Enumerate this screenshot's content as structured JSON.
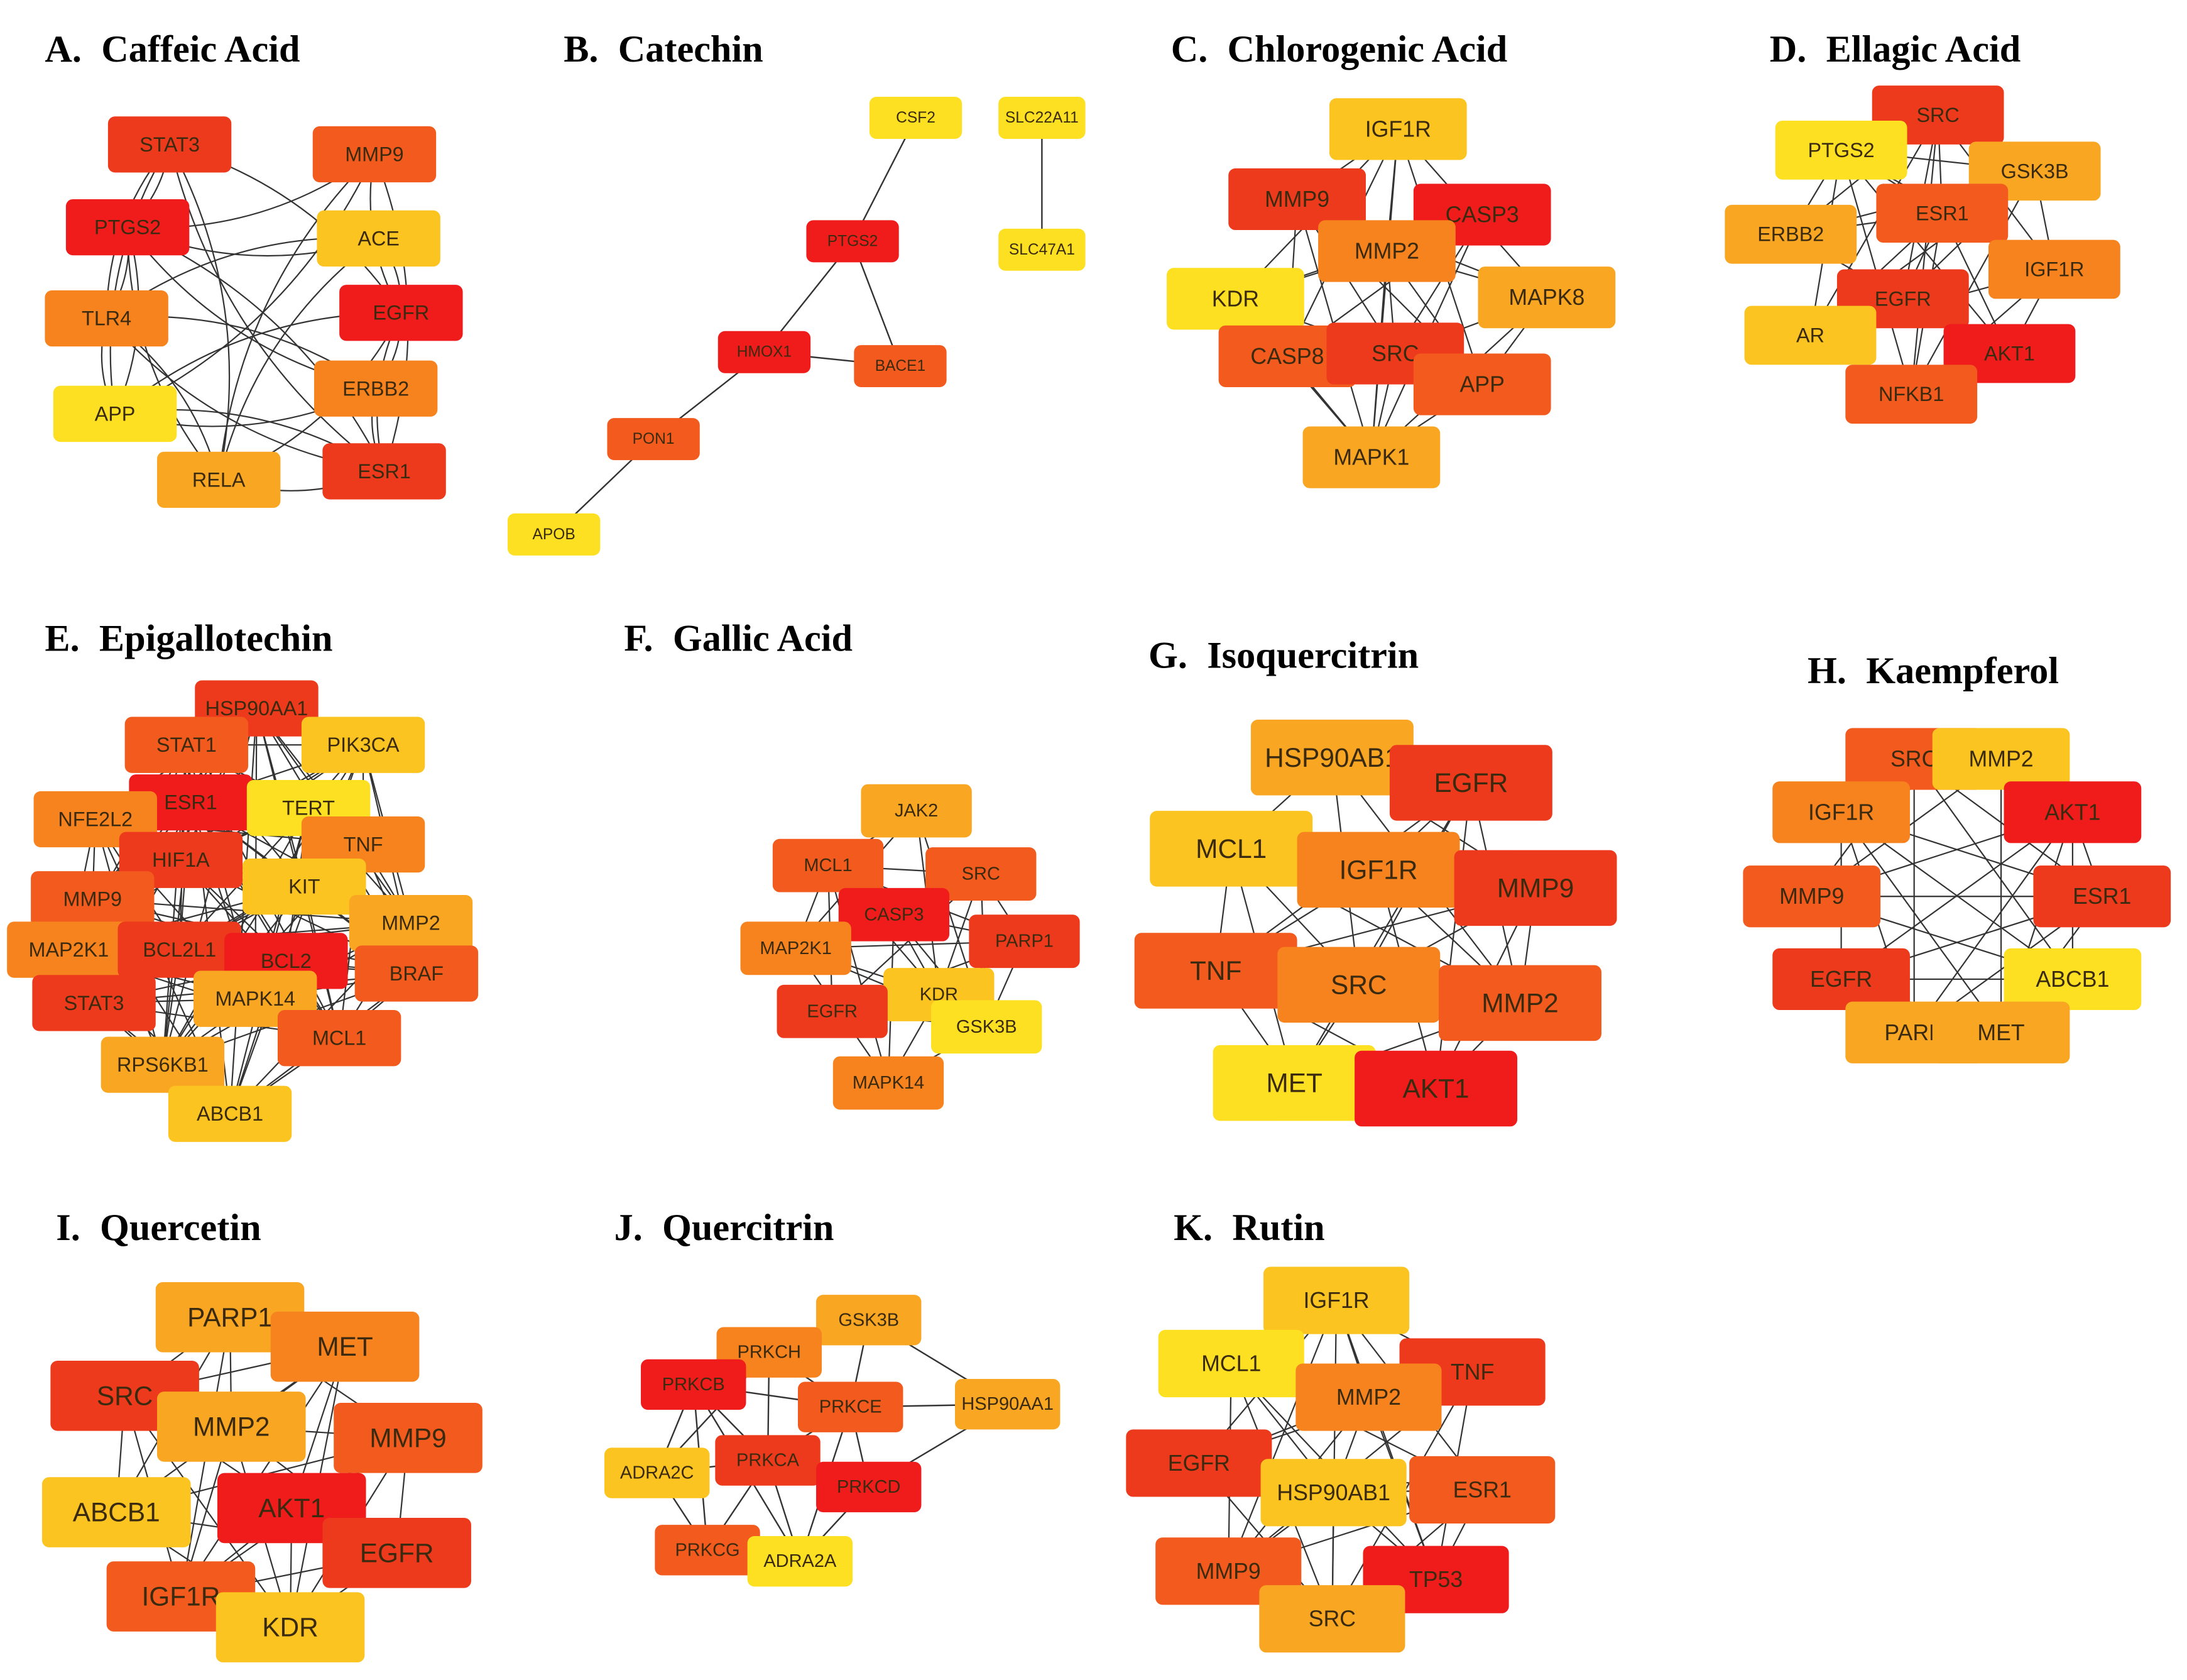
{
  "colors": {
    "red": "#f01c1c",
    "red_orange": "#ee3a1c",
    "orange_red": "#f25a1e",
    "orange": "#f7831f",
    "light_orange": "#f9a623",
    "gold": "#fbc420",
    "yellow": "#fde022",
    "edge": "#333333"
  },
  "panels": [
    {
      "letter": "A.",
      "name": "Caffeic Acid",
      "nodes": [
        {
          "label": "STAT3",
          "color": "red_orange"
        },
        {
          "label": "MMP9",
          "color": "orange_red"
        },
        {
          "label": "PTGS2",
          "color": "red"
        },
        {
          "label": "ACE",
          "color": "gold"
        },
        {
          "label": "TLR4",
          "color": "orange"
        },
        {
          "label": "EGFR",
          "color": "red"
        },
        {
          "label": "ERBB2",
          "color": "orange"
        },
        {
          "label": "APP",
          "color": "yellow"
        },
        {
          "label": "RELA",
          "color": "light_orange"
        },
        {
          "label": "ESR1",
          "color": "red_orange"
        }
      ]
    },
    {
      "letter": "B.",
      "name": "Catechin",
      "nodes": [
        {
          "label": "CSF2",
          "color": "yellow"
        },
        {
          "label": "SLC22A11",
          "color": "yellow"
        },
        {
          "label": "PTGS2",
          "color": "red"
        },
        {
          "label": "SLC47A1",
          "color": "yellow"
        },
        {
          "label": "HMOX1",
          "color": "red"
        },
        {
          "label": "BACE1",
          "color": "orange_red"
        },
        {
          "label": "PON1",
          "color": "orange_red"
        },
        {
          "label": "APOB",
          "color": "yellow"
        }
      ]
    },
    {
      "letter": "C.",
      "name": "Chlorogenic Acid",
      "nodes": [
        {
          "label": "IGF1R",
          "color": "gold"
        },
        {
          "label": "MMP9",
          "color": "red_orange"
        },
        {
          "label": "CASP3",
          "color": "red"
        },
        {
          "label": "MMP2",
          "color": "orange"
        },
        {
          "label": "KDR",
          "color": "yellow"
        },
        {
          "label": "MAPK8",
          "color": "light_orange"
        },
        {
          "label": "CASP8",
          "color": "orange_red"
        },
        {
          "label": "SRC",
          "color": "red_orange"
        },
        {
          "label": "APP",
          "color": "orange_red"
        },
        {
          "label": "MAPK1",
          "color": "light_orange"
        }
      ]
    },
    {
      "letter": "D.",
      "name": "Ellagic Acid",
      "nodes": [
        {
          "label": "SRC",
          "color": "red_orange"
        },
        {
          "label": "PTGS2",
          "color": "yellow"
        },
        {
          "label": "GSK3B",
          "color": "light_orange"
        },
        {
          "label": "ESR1",
          "color": "orange_red"
        },
        {
          "label": "ERBB2",
          "color": "light_orange"
        },
        {
          "label": "IGF1R",
          "color": "orange"
        },
        {
          "label": "EGFR",
          "color": "red_orange"
        },
        {
          "label": "AR",
          "color": "gold"
        },
        {
          "label": "AKT1",
          "color": "red"
        },
        {
          "label": "NFKB1",
          "color": "orange_red"
        }
      ]
    },
    {
      "letter": "E.",
      "name": "Epigallotechin",
      "nodes": [
        {
          "label": "HSP90AA1",
          "color": "red_orange"
        },
        {
          "label": "STAT1",
          "color": "orange_red"
        },
        {
          "label": "PIK3CA",
          "color": "gold"
        },
        {
          "label": "ESR1",
          "color": "red"
        },
        {
          "label": "TERT",
          "color": "yellow"
        },
        {
          "label": "NFE2L2",
          "color": "orange"
        },
        {
          "label": "TNF",
          "color": "orange"
        },
        {
          "label": "HIF1A",
          "color": "red_orange"
        },
        {
          "label": "KIT",
          "color": "gold"
        },
        {
          "label": "MMP9",
          "color": "orange_red"
        },
        {
          "label": "MMP2",
          "color": "light_orange"
        },
        {
          "label": "MAP2K1",
          "color": "orange"
        },
        {
          "label": "BCL2L1",
          "color": "red_orange"
        },
        {
          "label": "BCL2",
          "color": "red"
        },
        {
          "label": "BRAF",
          "color": "orange_red"
        },
        {
          "label": "STAT3",
          "color": "red_orange"
        },
        {
          "label": "MAPK14",
          "color": "light_orange"
        },
        {
          "label": "MCL1",
          "color": "orange_red"
        },
        {
          "label": "RPS6KB1",
          "color": "light_orange"
        },
        {
          "label": "ABCB1",
          "color": "gold"
        }
      ]
    },
    {
      "letter": "F.",
      "name": "Gallic Acid",
      "nodes": [
        {
          "label": "JAK2",
          "color": "light_orange"
        },
        {
          "label": "MCL1",
          "color": "orange_red"
        },
        {
          "label": "SRC",
          "color": "orange_red"
        },
        {
          "label": "CASP3",
          "color": "red"
        },
        {
          "label": "PARP1",
          "color": "red_orange"
        },
        {
          "label": "MAP2K1",
          "color": "orange"
        },
        {
          "label": "KDR",
          "color": "gold"
        },
        {
          "label": "EGFR",
          "color": "red_orange"
        },
        {
          "label": "GSK3B",
          "color": "yellow"
        },
        {
          "label": "MAPK14",
          "color": "orange"
        }
      ]
    },
    {
      "letter": "G.",
      "name": "Isoquercitrin",
      "nodes": [
        {
          "label": "HSP90AB1",
          "color": "light_orange"
        },
        {
          "label": "EGFR",
          "color": "red_orange"
        },
        {
          "label": "MCL1",
          "color": "gold"
        },
        {
          "label": "IGF1R",
          "color": "orange"
        },
        {
          "label": "MMP9",
          "color": "red_orange"
        },
        {
          "label": "TNF",
          "color": "orange_red"
        },
        {
          "label": "SRC",
          "color": "orange"
        },
        {
          "label": "MMP2",
          "color": "orange_red"
        },
        {
          "label": "MET",
          "color": "yellow"
        },
        {
          "label": "AKT1",
          "color": "red"
        }
      ]
    },
    {
      "letter": "H.",
      "name": "Kaempferol",
      "nodes": [
        {
          "label": "SRC",
          "color": "orange_red"
        },
        {
          "label": "MMP2",
          "color": "gold"
        },
        {
          "label": "IGF1R",
          "color": "orange"
        },
        {
          "label": "AKT1",
          "color": "red"
        },
        {
          "label": "MMP9",
          "color": "orange_red"
        },
        {
          "label": "ESR1",
          "color": "red_orange"
        },
        {
          "label": "EGFR",
          "color": "red_orange"
        },
        {
          "label": "ABCB1",
          "color": "yellow"
        },
        {
          "label": "PARP",
          "color": "light_orange"
        },
        {
          "label": "MET",
          "color": "light_orange"
        }
      ]
    },
    {
      "letter": "I.",
      "name": "Quercetin",
      "nodes": [
        {
          "label": "PARP1",
          "color": "light_orange"
        },
        {
          "label": "MET",
          "color": "orange"
        },
        {
          "label": "SRC",
          "color": "red_orange"
        },
        {
          "label": "MMP2",
          "color": "light_orange"
        },
        {
          "label": "MMP9",
          "color": "orange_red"
        },
        {
          "label": "ABCB1",
          "color": "gold"
        },
        {
          "label": "AKT1",
          "color": "red"
        },
        {
          "label": "EGFR",
          "color": "red_orange"
        },
        {
          "label": "IGF1R",
          "color": "orange_red"
        },
        {
          "label": "KDR",
          "color": "gold"
        }
      ]
    },
    {
      "letter": "J.",
      "name": "Quercitrin",
      "nodes": [
        {
          "label": "GSK3B",
          "color": "light_orange"
        },
        {
          "label": "PRKCH",
          "color": "orange"
        },
        {
          "label": "PRKCB",
          "color": "red"
        },
        {
          "label": "PRKCE",
          "color": "orange_red"
        },
        {
          "label": "HSP90AA1",
          "color": "light_orange"
        },
        {
          "label": "ADRA2C",
          "color": "gold"
        },
        {
          "label": "PRKCA",
          "color": "red_orange"
        },
        {
          "label": "PRKCD",
          "color": "red"
        },
        {
          "label": "PRKCG",
          "color": "orange_red"
        },
        {
          "label": "ADRA2A",
          "color": "yellow"
        }
      ]
    },
    {
      "letter": "K.",
      "name": "Rutin",
      "nodes": [
        {
          "label": "IGF1R",
          "color": "gold"
        },
        {
          "label": "MCL1",
          "color": "yellow"
        },
        {
          "label": "TNF",
          "color": "red_orange"
        },
        {
          "label": "MMP2",
          "color": "orange"
        },
        {
          "label": "EGFR",
          "color": "red_orange"
        },
        {
          "label": "HSP90AB1",
          "color": "gold"
        },
        {
          "label": "ESR1",
          "color": "orange_red"
        },
        {
          "label": "MMP9",
          "color": "orange_red"
        },
        {
          "label": "TP53",
          "color": "red"
        },
        {
          "label": "SRC",
          "color": "light_orange"
        }
      ]
    }
  ]
}
